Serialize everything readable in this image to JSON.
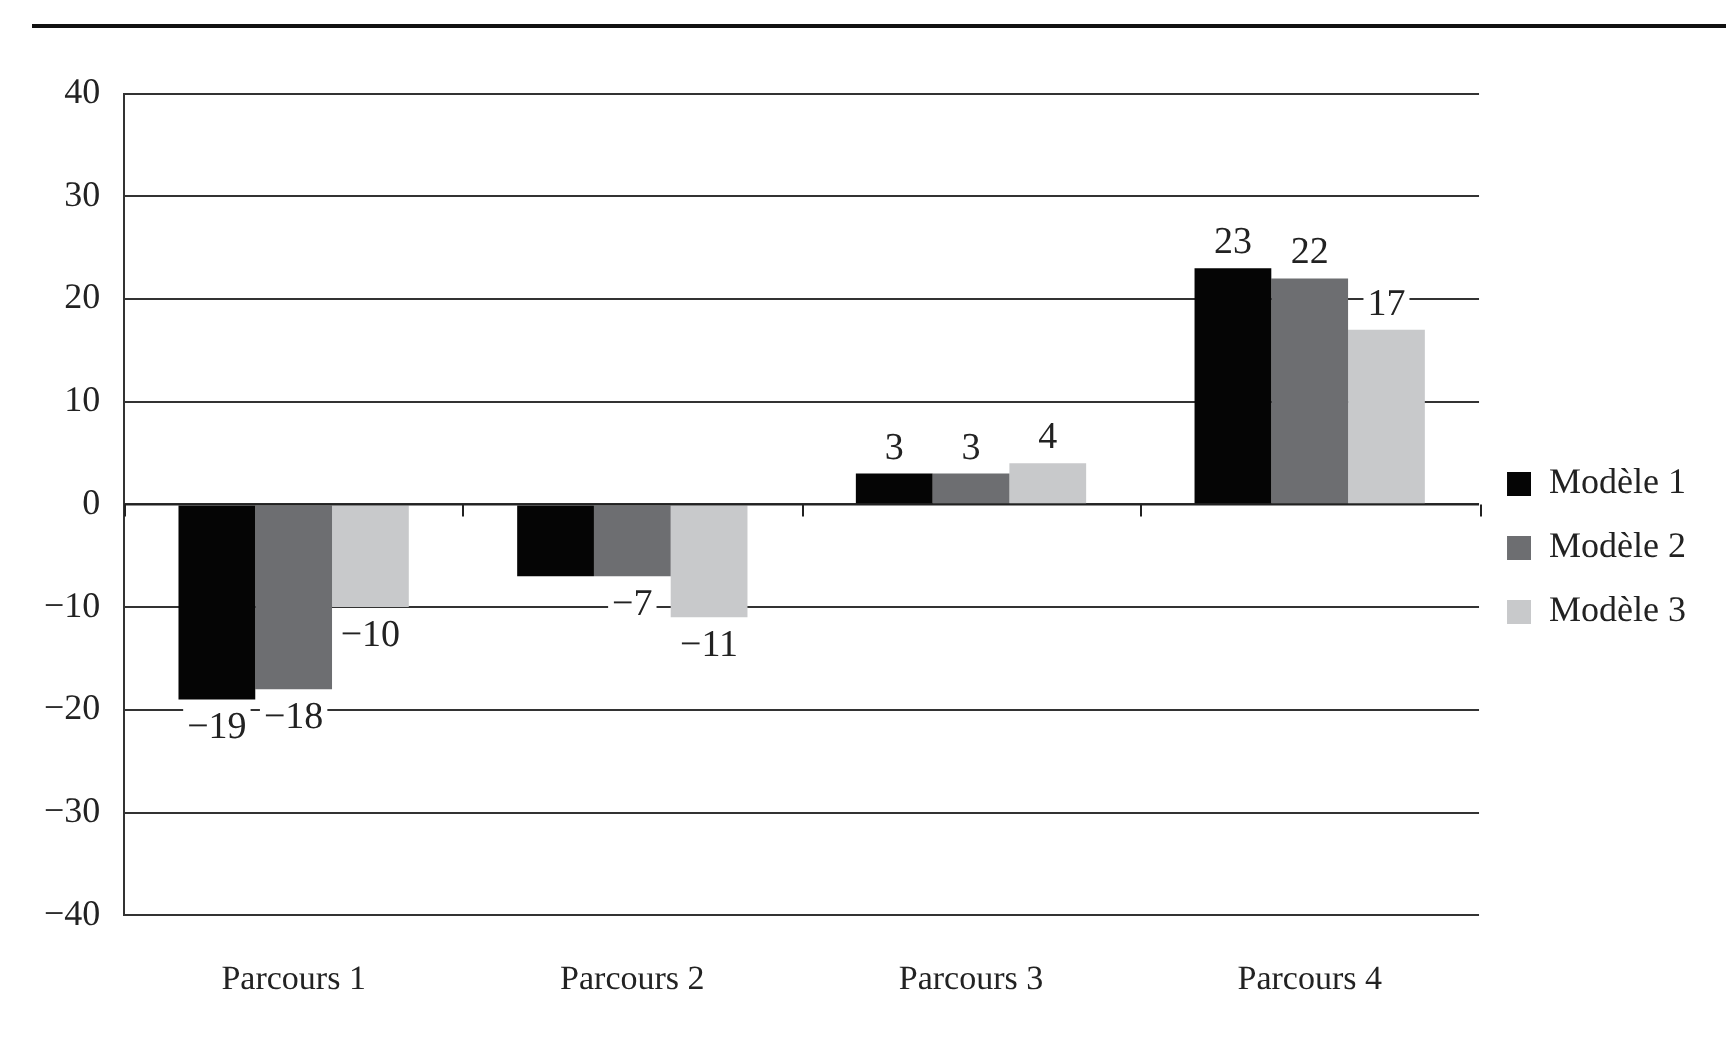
{
  "chart_data": {
    "type": "bar",
    "categories": [
      "Parcours 1",
      "Parcours 2",
      "Parcours 3",
      "Parcours 4"
    ],
    "series": [
      {
        "name": "Modèle 1",
        "color": "#050505",
        "values": [
          -19,
          -7,
          3,
          23
        ],
        "value_labels": [
          "−19",
          null,
          "3",
          "23"
        ]
      },
      {
        "name": "Modèle 2",
        "color": "#6d6e71",
        "values": [
          -18,
          -7,
          3,
          22
        ],
        "value_labels": [
          "−18",
          "−7",
          "3",
          "22"
        ]
      },
      {
        "name": "Modèle 3",
        "color": "#c8c9cb",
        "values": [
          -10,
          -11,
          4,
          17
        ],
        "value_labels": [
          "−10",
          "−11",
          "4",
          "17"
        ]
      }
    ],
    "ylim": [
      -40,
      40
    ],
    "yticks": [
      {
        "value": -40,
        "label": "−40"
      },
      {
        "value": -30,
        "label": "−30"
      },
      {
        "value": -20,
        "label": "−20"
      },
      {
        "value": -10,
        "label": "−10"
      },
      0,
      10,
      20,
      30,
      40
    ],
    "grid": "y",
    "legend": "right"
  }
}
